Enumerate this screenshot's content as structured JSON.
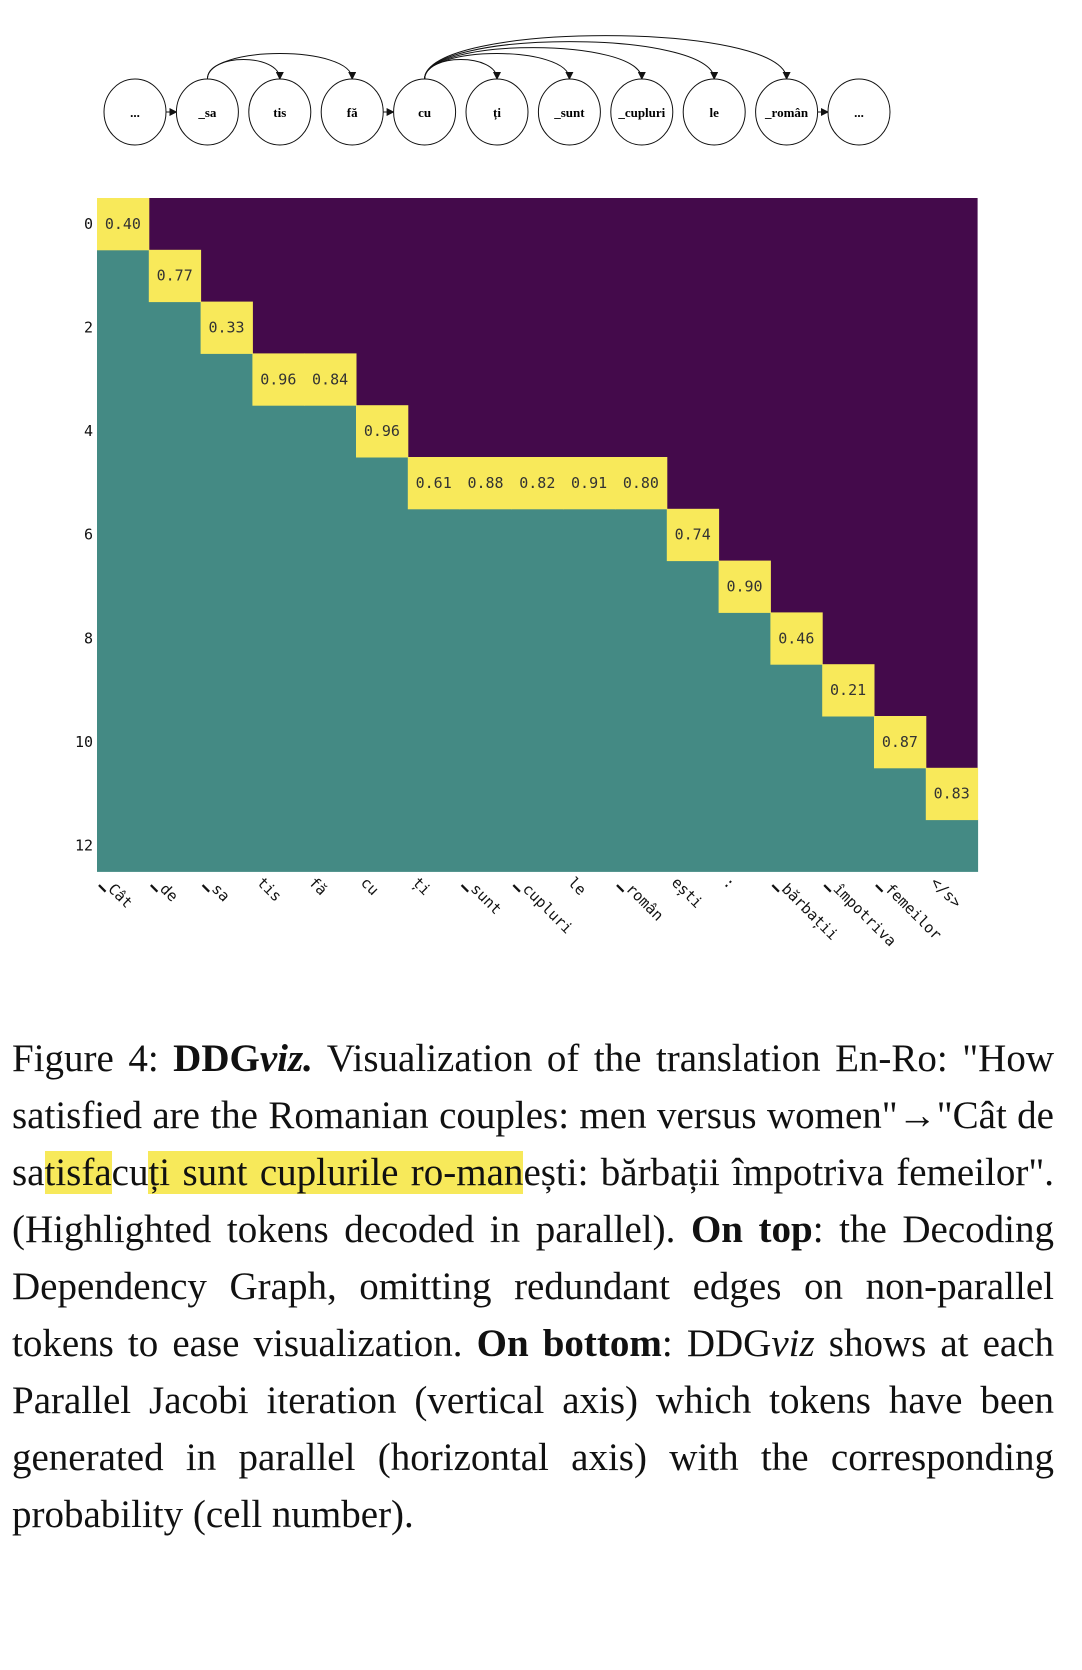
{
  "graph": {
    "nodes": [
      "...",
      "_sa",
      "tis",
      "fă",
      "cu",
      "ți",
      "_sunt",
      "_cupluri",
      "le",
      "_român",
      "..."
    ]
  },
  "chart_data": {
    "type": "heatmap",
    "xlabels": [
      "▁Cât",
      "▁de",
      "▁sa",
      "tis",
      "fă",
      "cu",
      "ți",
      "▁sunt",
      "▁cupluri",
      "le",
      "▁român",
      "ești",
      ":",
      "▁bărbații",
      "▁împotriva",
      "▁femeilor",
      "</s>"
    ],
    "yticks": [
      "0",
      "2",
      "4",
      "6",
      "8",
      "10",
      "12"
    ],
    "ylim": [
      0,
      12
    ],
    "cells": [
      {
        "row": 0,
        "col": 0,
        "value": "0.40"
      },
      {
        "row": 1,
        "col": 1,
        "value": "0.77"
      },
      {
        "row": 2,
        "col": 2,
        "value": "0.33"
      },
      {
        "row": 3,
        "col": 3,
        "value": "0.96"
      },
      {
        "row": 3,
        "col": 4,
        "value": "0.84"
      },
      {
        "row": 4,
        "col": 5,
        "value": "0.96"
      },
      {
        "row": 5,
        "col": 6,
        "value": "0.61"
      },
      {
        "row": 5,
        "col": 7,
        "value": "0.88"
      },
      {
        "row": 5,
        "col": 8,
        "value": "0.82"
      },
      {
        "row": 5,
        "col": 9,
        "value": "0.91"
      },
      {
        "row": 5,
        "col": 10,
        "value": "0.80"
      },
      {
        "row": 6,
        "col": 11,
        "value": "0.74"
      },
      {
        "row": 7,
        "col": 12,
        "value": "0.90"
      },
      {
        "row": 8,
        "col": 13,
        "value": "0.46"
      },
      {
        "row": 9,
        "col": 14,
        "value": "0.21"
      },
      {
        "row": 10,
        "col": 15,
        "value": "0.87"
      },
      {
        "row": 11,
        "col": 16,
        "value": "0.83"
      }
    ],
    "colors": {
      "upper": "#440a4b",
      "lower": "#448a84",
      "highlight": "#f8e95a"
    }
  },
  "caption": {
    "fig_label": "Figure 4:",
    "name_bold": "DDG",
    "name_italic": "viz.",
    "t1": "Visualization of the translation En-Ro: \"How satisfied are the Romanian couples: men versus women\"→\"Cât de sa",
    "h1": "tisfa",
    "t2": "cu",
    "h2": "ți sunt cuplurile ro-man",
    "t3": "ești: bărbații împotriva femeilor\". (Highlighted tokens decoded in parallel).",
    "on_top": "On top",
    "t4": ": the Decoding Dependency Graph, omitting redundant edges on non-parallel tokens to ease visualization.",
    "on_bottom": "On bottom",
    "t5": ":",
    "name2_plain": "DDG",
    "name2_italic": "viz",
    "t6": "shows at each Parallel Jacobi iteration (vertical axis) which tokens have been generated in parallel (horizontal axis) with the corresponding probability (cell number)."
  }
}
